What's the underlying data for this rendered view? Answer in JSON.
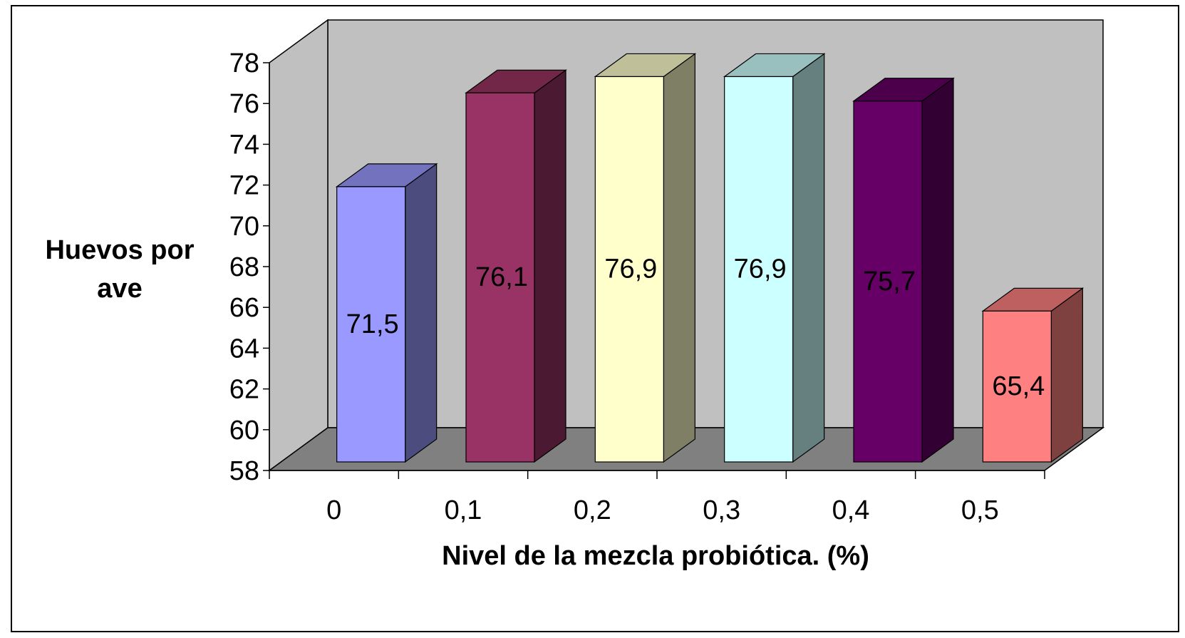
{
  "chart_data": {
    "type": "bar",
    "categories": [
      "0",
      "0,1",
      "0,2",
      "0,3",
      "0,4",
      "0,5"
    ],
    "values": [
      71.5,
      76.1,
      76.9,
      76.9,
      75.7,
      65.4
    ],
    "data_labels": [
      "71,5",
      "76,1",
      "76,9",
      "76,9",
      "75,7",
      "65,4"
    ],
    "xlabel": "Nivel de la mezcla probiótica. (%)",
    "ylabel": [
      "Huevos por",
      "ave"
    ],
    "ylim": [
      58,
      78
    ],
    "yticks": [
      "58",
      "60",
      "62",
      "64",
      "66",
      "68",
      "70",
      "72",
      "74",
      "76",
      "78"
    ],
    "style": "3d-column",
    "legend": "none",
    "grid": false,
    "colors": {
      "wall": "#c0c0c0",
      "floor": "#808080",
      "bars": [
        "#9999ff",
        "#993366",
        "#ffffcc",
        "#ccffff",
        "#660066",
        "#ff8080"
      ],
      "bar_sides": [
        "#4c4c7f",
        "#4c1933",
        "#7f7f66",
        "#667f7f",
        "#330033",
        "#7f4040"
      ],
      "bar_tops": [
        "#7272bf",
        "#722648",
        "#bfbf99",
        "#99bfbf",
        "#4c004c",
        "#bf6060"
      ]
    }
  }
}
